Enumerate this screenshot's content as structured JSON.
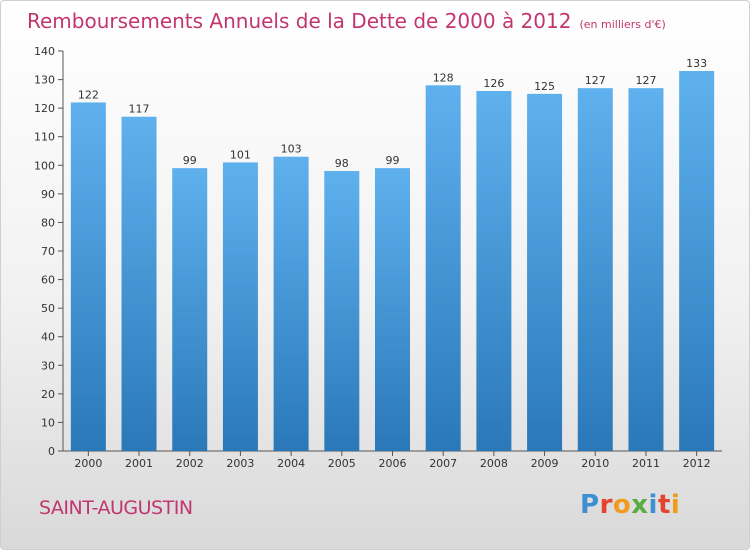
{
  "chart_data": {
    "type": "bar",
    "title": "Remboursements Annuels de la Dette de 2000 à 2012",
    "subtitle": "(en milliers d'€)",
    "xlabel": "",
    "ylabel": "",
    "categories": [
      "2000",
      "2001",
      "2002",
      "2003",
      "2004",
      "2005",
      "2006",
      "2007",
      "2008",
      "2009",
      "2010",
      "2011",
      "2012"
    ],
    "values": [
      122,
      117,
      99,
      101,
      103,
      98,
      99,
      128,
      126,
      125,
      127,
      127,
      133
    ],
    "ylim": [
      0,
      140
    ],
    "yticks": [
      0,
      10,
      20,
      30,
      40,
      50,
      60,
      70,
      80,
      90,
      100,
      110,
      120,
      130,
      140
    ],
    "grid": false,
    "data_labels": true,
    "bar_color": "#4a9fde"
  },
  "footer": {
    "commune": "SAINT-AUGUSTIN",
    "logo": "Proxiti"
  },
  "colors": {
    "title": "#c2366f",
    "bar_top": "#5fb1ee",
    "bar_bottom": "#2a78b8"
  }
}
